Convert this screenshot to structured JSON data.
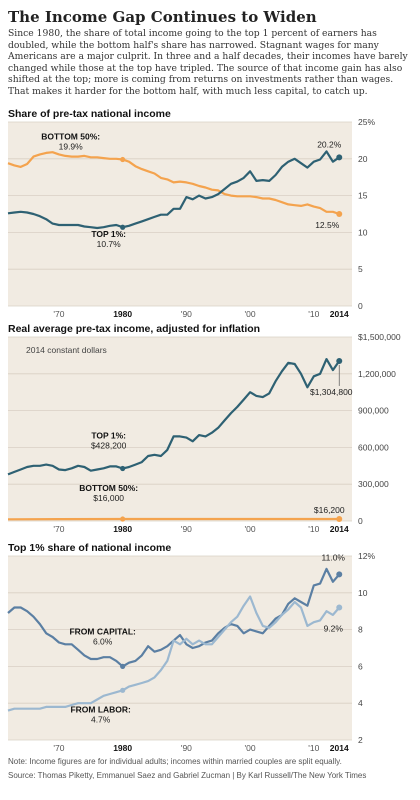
{
  "article": {
    "title": "The Income Gap Continues to Widen",
    "intro": "Since 1980, the share of total income going to the top 1 percent of earners has doubled, while the bottom half's share has narrowed. Stagnant wages for many Americans are a major culprit. In three and a half decades, their incomes have barely changed while those at the top have tripled. The source of that income gain has also shifted at the top; more is coming from returns on investments rather than wages. That makes it harder for the bottom half, with much less capital, to catch up.",
    "note": "Note: Income figures are for individual adults; incomes within married couples are split equally.",
    "source": "Source: Thomas Piketty, Emmanuel Saez and Gabriel Zucman | By Karl Russell/The New York Times"
  },
  "colors": {
    "panel": "#f1ebe2",
    "teal": "#2e6173",
    "orange": "#f4a34e",
    "lightblue": "#9cb8d0",
    "grid": "#d9d0c4"
  },
  "chart_data": [
    {
      "type": "line",
      "title": "Share of pre-tax national income",
      "xlim": [
        1962,
        2016
      ],
      "ylim": [
        0,
        25
      ],
      "x_tick_labels": [
        "'70",
        "1980",
        "'90",
        "'00",
        "'10",
        "2014"
      ],
      "x_ticks": [
        1970,
        1980,
        1990,
        2000,
        2010,
        2014
      ],
      "y_ticks": [
        0,
        5,
        10,
        15,
        20,
        25
      ],
      "y_tick_labels": [
        "0",
        "5",
        "10",
        "15",
        "20",
        "25%"
      ],
      "series": [
        {
          "name": "BOTTOM 50%",
          "color": "#f4a34e",
          "x": [
            1962,
            1963,
            1964,
            1965,
            1966,
            1967,
            1968,
            1969,
            1970,
            1971,
            1972,
            1973,
            1974,
            1975,
            1976,
            1977,
            1978,
            1979,
            1980,
            1981,
            1982,
            1983,
            1984,
            1985,
            1986,
            1987,
            1988,
            1989,
            1990,
            1991,
            1992,
            1993,
            1994,
            1995,
            1996,
            1997,
            1998,
            1999,
            2000,
            2001,
            2002,
            2003,
            2004,
            2005,
            2006,
            2007,
            2008,
            2009,
            2010,
            2011,
            2012,
            2013,
            2014
          ],
          "y": [
            19.4,
            19.1,
            18.9,
            19.3,
            20.3,
            20.6,
            20.8,
            20.9,
            20.6,
            20.4,
            20.3,
            20.3,
            20.4,
            20.2,
            20.2,
            20.1,
            20.0,
            20.0,
            19.9,
            19.6,
            19.0,
            18.6,
            18.3,
            18.0,
            17.4,
            17.2,
            16.8,
            16.9,
            16.8,
            16.6,
            16.3,
            16.1,
            15.8,
            15.7,
            15.2,
            15.0,
            14.9,
            14.9,
            14.9,
            14.8,
            14.6,
            14.6,
            14.4,
            14.1,
            13.8,
            13.7,
            13.6,
            13.8,
            13.5,
            13.3,
            12.8,
            12.8,
            12.5
          ],
          "end_label": "12.5%",
          "point_label": "19.9%"
        },
        {
          "name": "TOP 1%",
          "color": "#2e6173",
          "x": [
            1962,
            1963,
            1964,
            1965,
            1966,
            1967,
            1968,
            1969,
            1970,
            1971,
            1972,
            1973,
            1974,
            1975,
            1976,
            1977,
            1978,
            1979,
            1980,
            1981,
            1982,
            1983,
            1984,
            1985,
            1986,
            1987,
            1988,
            1989,
            1990,
            1991,
            1992,
            1993,
            1994,
            1995,
            1996,
            1997,
            1998,
            1999,
            2000,
            2001,
            2002,
            2003,
            2004,
            2005,
            2006,
            2007,
            2008,
            2009,
            2010,
            2011,
            2012,
            2013,
            2014
          ],
          "y": [
            12.6,
            12.7,
            12.8,
            12.7,
            12.5,
            12.2,
            11.8,
            11.2,
            11.0,
            11.0,
            11.0,
            11.0,
            10.8,
            10.7,
            10.6,
            10.7,
            10.9,
            11.0,
            10.7,
            10.9,
            11.2,
            11.5,
            11.8,
            12.1,
            12.4,
            12.4,
            13.2,
            13.2,
            14.8,
            14.5,
            15.0,
            14.6,
            14.8,
            15.2,
            15.9,
            16.6,
            16.9,
            17.4,
            18.3,
            17.0,
            17.1,
            17.0,
            17.8,
            18.9,
            19.6,
            20.0,
            19.4,
            18.8,
            19.6,
            19.9,
            21.0,
            19.6,
            20.2
          ],
          "end_label": "20.2%",
          "point_label": "10.7%"
        }
      ]
    },
    {
      "type": "line",
      "title": "Real average pre-tax income, adjusted for inflation",
      "subtitle": "2014 constant dollars",
      "xlim": [
        1962,
        2016
      ],
      "ylim": [
        0,
        1500000
      ],
      "x_tick_labels": [
        "'70",
        "1980",
        "'90",
        "'00",
        "'10",
        "2014"
      ],
      "x_ticks": [
        1970,
        1980,
        1990,
        2000,
        2010,
        2014
      ],
      "y_ticks": [
        0,
        300000,
        600000,
        900000,
        1200000,
        1500000
      ],
      "y_tick_labels": [
        "0",
        "300,000",
        "600,000",
        "900,000",
        "1,200,000",
        "$1,500,000"
      ],
      "series": [
        {
          "name": "TOP 1%",
          "color": "#2e6173",
          "x": [
            1962,
            1963,
            1964,
            1965,
            1966,
            1967,
            1968,
            1969,
            1970,
            1971,
            1972,
            1973,
            1974,
            1975,
            1976,
            1977,
            1978,
            1979,
            1980,
            1981,
            1982,
            1983,
            1984,
            1985,
            1986,
            1987,
            1988,
            1989,
            1990,
            1991,
            1992,
            1993,
            1994,
            1995,
            1996,
            1997,
            1998,
            1999,
            2000,
            2001,
            2002,
            2003,
            2004,
            2005,
            2006,
            2007,
            2008,
            2009,
            2010,
            2011,
            2012,
            2013,
            2014
          ],
          "y": [
            380000,
            400000,
            420000,
            440000,
            450000,
            450000,
            460000,
            450000,
            420000,
            415000,
            430000,
            450000,
            440000,
            410000,
            420000,
            430000,
            445000,
            445000,
            428200,
            440000,
            460000,
            480000,
            530000,
            540000,
            530000,
            580000,
            690000,
            690000,
            680000,
            650000,
            700000,
            690000,
            720000,
            760000,
            820000,
            880000,
            930000,
            990000,
            1050000,
            1020000,
            1010000,
            1040000,
            1140000,
            1220000,
            1290000,
            1280000,
            1200000,
            1090000,
            1180000,
            1200000,
            1320000,
            1230000,
            1304800
          ],
          "end_label": "$1,304,800",
          "point_label": "$428,200"
        },
        {
          "name": "BOTTOM 50%",
          "color": "#f4a34e",
          "x": [
            1962,
            1970,
            1980,
            1990,
            2000,
            2010,
            2014
          ],
          "y": [
            14000,
            15500,
            16000,
            16000,
            16300,
            16100,
            16200
          ],
          "end_label": "$16,200",
          "point_label": "$16,000"
        }
      ]
    },
    {
      "type": "line",
      "title": "Top 1% share of national income",
      "xlim": [
        1962,
        2016
      ],
      "ylim": [
        2,
        12
      ],
      "x_tick_labels": [
        "'70",
        "1980",
        "'90",
        "'00",
        "'10",
        "2014"
      ],
      "x_ticks": [
        1970,
        1980,
        1990,
        2000,
        2010,
        2014
      ],
      "y_ticks": [
        2,
        4,
        6,
        8,
        10,
        12
      ],
      "y_tick_labels": [
        "2",
        "4",
        "6",
        "8",
        "10",
        "12%"
      ],
      "series": [
        {
          "name": "FROM CAPITAL",
          "color": "#5b7fa3",
          "x": [
            1962,
            1963,
            1964,
            1965,
            1966,
            1967,
            1968,
            1969,
            1970,
            1971,
            1972,
            1973,
            1974,
            1975,
            1976,
            1977,
            1978,
            1979,
            1980,
            1981,
            1982,
            1983,
            1984,
            1985,
            1986,
            1987,
            1988,
            1989,
            1990,
            1991,
            1992,
            1993,
            1994,
            1995,
            1996,
            1997,
            1998,
            1999,
            2000,
            2001,
            2002,
            2003,
            2004,
            2005,
            2006,
            2007,
            2008,
            2009,
            2010,
            2011,
            2012,
            2013,
            2014
          ],
          "y": [
            8.9,
            9.2,
            9.2,
            9.0,
            8.7,
            8.3,
            7.8,
            7.6,
            7.3,
            7.2,
            7.2,
            6.9,
            6.6,
            6.4,
            6.4,
            6.5,
            6.5,
            6.3,
            6.0,
            6.2,
            6.3,
            6.6,
            7.1,
            6.8,
            6.9,
            7.1,
            7.4,
            7.7,
            7.2,
            7.0,
            7.1,
            7.3,
            7.4,
            7.8,
            8.1,
            8.3,
            8.2,
            7.8,
            8.0,
            7.9,
            7.8,
            8.2,
            8.6,
            8.8,
            9.4,
            9.7,
            9.5,
            9.3,
            10.4,
            10.5,
            11.3,
            10.6,
            11.0
          ],
          "end_label": "11.0%",
          "point_label": "6.0%"
        },
        {
          "name": "FROM LABOR",
          "color": "#9cb8d0",
          "x": [
            1962,
            1963,
            1964,
            1965,
            1966,
            1967,
            1968,
            1969,
            1970,
            1971,
            1972,
            1973,
            1974,
            1975,
            1976,
            1977,
            1978,
            1979,
            1980,
            1981,
            1982,
            1983,
            1984,
            1985,
            1986,
            1987,
            1988,
            1989,
            1990,
            1991,
            1992,
            1993,
            1994,
            1995,
            1996,
            1997,
            1998,
            1999,
            2000,
            2001,
            2002,
            2003,
            2004,
            2005,
            2006,
            2007,
            2008,
            2009,
            2010,
            2011,
            2012,
            2013,
            2014
          ],
          "y": [
            3.6,
            3.7,
            3.7,
            3.7,
            3.7,
            3.7,
            3.8,
            3.8,
            3.8,
            3.8,
            3.9,
            4.0,
            4.0,
            4.0,
            4.2,
            4.4,
            4.5,
            4.6,
            4.7,
            4.9,
            5.0,
            5.1,
            5.2,
            5.4,
            5.8,
            6.3,
            7.4,
            7.2,
            7.5,
            7.2,
            7.4,
            7.2,
            7.2,
            7.6,
            8.0,
            8.4,
            8.7,
            9.3,
            9.8,
            8.9,
            8.2,
            8.1,
            8.4,
            8.8,
            9.1,
            9.5,
            9.2,
            8.2,
            8.4,
            8.5,
            9.0,
            8.8,
            9.2
          ],
          "end_label": "9.2%",
          "point_label": "4.7%"
        }
      ]
    }
  ]
}
